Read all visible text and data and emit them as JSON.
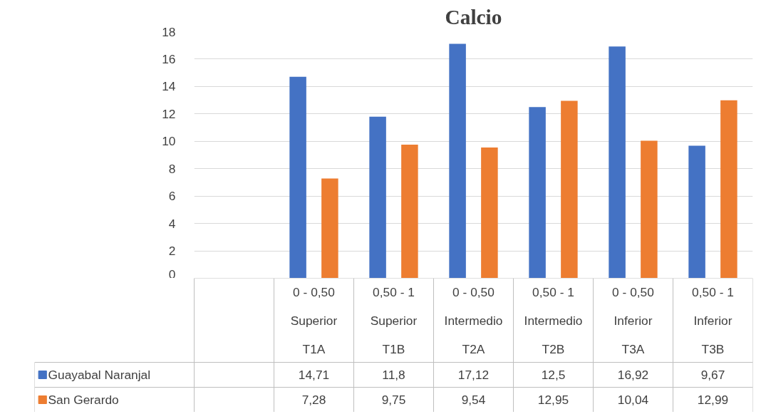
{
  "chart_data": {
    "type": "bar",
    "title": "Calcio",
    "categories": [
      null,
      "0 - 0,50\nSuperior\nT1A",
      "0,50 - 1\nSuperior\nT1B",
      "0 - 0,50\nIntermedio\nT2A",
      "0,50 - 1\nIntermedio\nT2B",
      "0 - 0,50\nInferior\nT3A",
      "0,50 - 1\nInferior\nT3B"
    ],
    "series": [
      {
        "name": "Guayabal Naranjal",
        "color": "#4472c4",
        "values": [
          null,
          14.71,
          11.8,
          17.12,
          12.5,
          16.92,
          9.67
        ],
        "value_labels": [
          null,
          "14,71",
          "11,8",
          "17,12",
          "12,5",
          "16,92",
          "9,67"
        ]
      },
      {
        "name": "San Gerardo",
        "color": "#ed7d31",
        "values": [
          null,
          7.28,
          9.75,
          9.54,
          12.95,
          10.04,
          12.99
        ],
        "value_labels": [
          null,
          "7,28",
          "9,75",
          "9,54",
          "12,95",
          "10,04",
          "12,99"
        ]
      }
    ],
    "ylim": [
      0,
      18
    ],
    "yticks": [
      0,
      2,
      4,
      6,
      8,
      10,
      12,
      14,
      16,
      18
    ],
    "grid": "y",
    "legend": "bottom"
  }
}
